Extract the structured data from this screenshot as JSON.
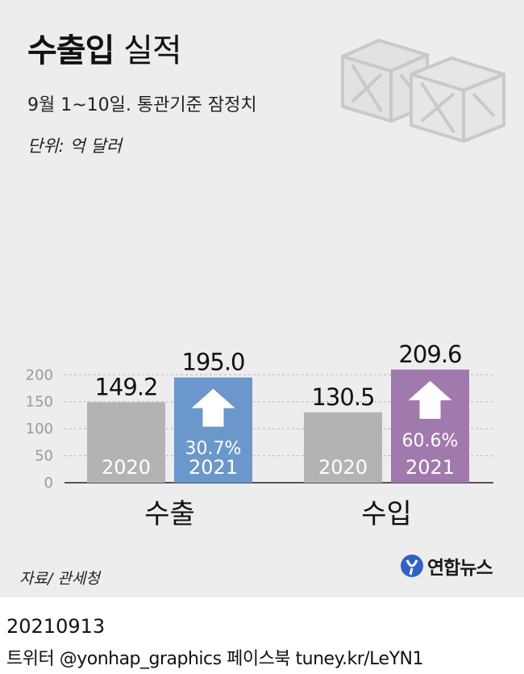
{
  "header": {
    "title_bold": "수출입",
    "title_light": "실적",
    "subtitle": "9월 1~10일. 통관기준 잠정치",
    "unit": "단위: 억 달러"
  },
  "footer": {
    "source": "자료/ 관세청",
    "logo_text": "연합뉴스",
    "date": "20210913",
    "social": "트위터 @yonhap_graphics  페이스북 tuney.kr/LeYN1"
  },
  "colors": {
    "bar_2020": "#b3b3b3",
    "bar_2021_export": "#6c97ca",
    "bar_2021_import": "#a17aad",
    "grid": "#b9b9b9",
    "arrow": "#ffffff"
  },
  "chart_data": {
    "type": "bar",
    "categories": [
      "수출",
      "수입"
    ],
    "series": [
      {
        "name": "2020",
        "values": [
          149.2,
          130.5
        ]
      },
      {
        "name": "2021",
        "values": [
          195.0,
          209.6
        ]
      }
    ],
    "value_labels": [
      [
        "149.2",
        "130.5"
      ],
      [
        "195.0",
        "209.6"
      ]
    ],
    "growth_labels": [
      "30.7%",
      "60.6%"
    ],
    "yticks": [
      0,
      50,
      100,
      150,
      200
    ],
    "ylim": [
      0,
      209.6
    ],
    "grid": true
  }
}
